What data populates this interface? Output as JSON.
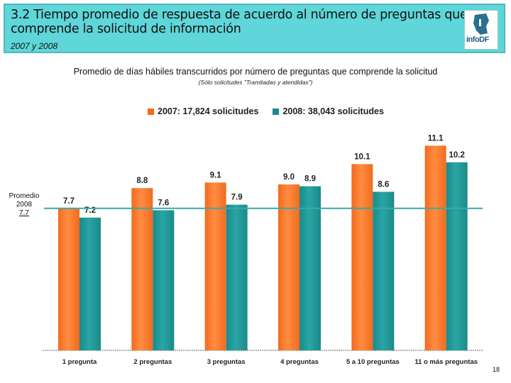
{
  "header": {
    "title_line1": "3.2 Tiempo promedio de respuesta de acuerdo al número de preguntas que",
    "title_line2": "comprende la solicitud de información",
    "subtitle": "2007 y 2008",
    "logo_text": "infoDF"
  },
  "average": {
    "line1": "Promedio",
    "line2": "2008",
    "line3": "7.7"
  },
  "page_number": "18",
  "colors": {
    "orange": "#f26b1d",
    "teal": "#1a8a8a",
    "avg_line": "#3aa8a8",
    "header_bg": "#5fd6d9"
  },
  "chart_data": {
    "type": "bar",
    "title": "Promedio de días hábiles transcurridos por número de preguntas que comprende la solicitud",
    "subtitle": "(Sólo solicitudes \"Tramitadas y atendidas\")",
    "categories": [
      "1 pregunta",
      "2 preguntas",
      "3 preguntas",
      "4 preguntas",
      "5 a 10 preguntas",
      "11 o más preguntas"
    ],
    "series": [
      {
        "name": "2007: 17,824 solicitudes",
        "color": "#f26b1d",
        "values": [
          7.7,
          8.8,
          9.1,
          9.0,
          10.1,
          11.1
        ]
      },
      {
        "name": "2008: 38,043 solicitudes",
        "color": "#1a8a8a",
        "values": [
          7.2,
          7.6,
          7.9,
          8.9,
          8.6,
          10.2
        ]
      }
    ],
    "reference_line": {
      "label": "Promedio 2008",
      "value": 7.7
    },
    "ylim": [
      0,
      12.2
    ],
    "xlabel": "",
    "ylabel": "",
    "grid": false,
    "legend": "top"
  }
}
